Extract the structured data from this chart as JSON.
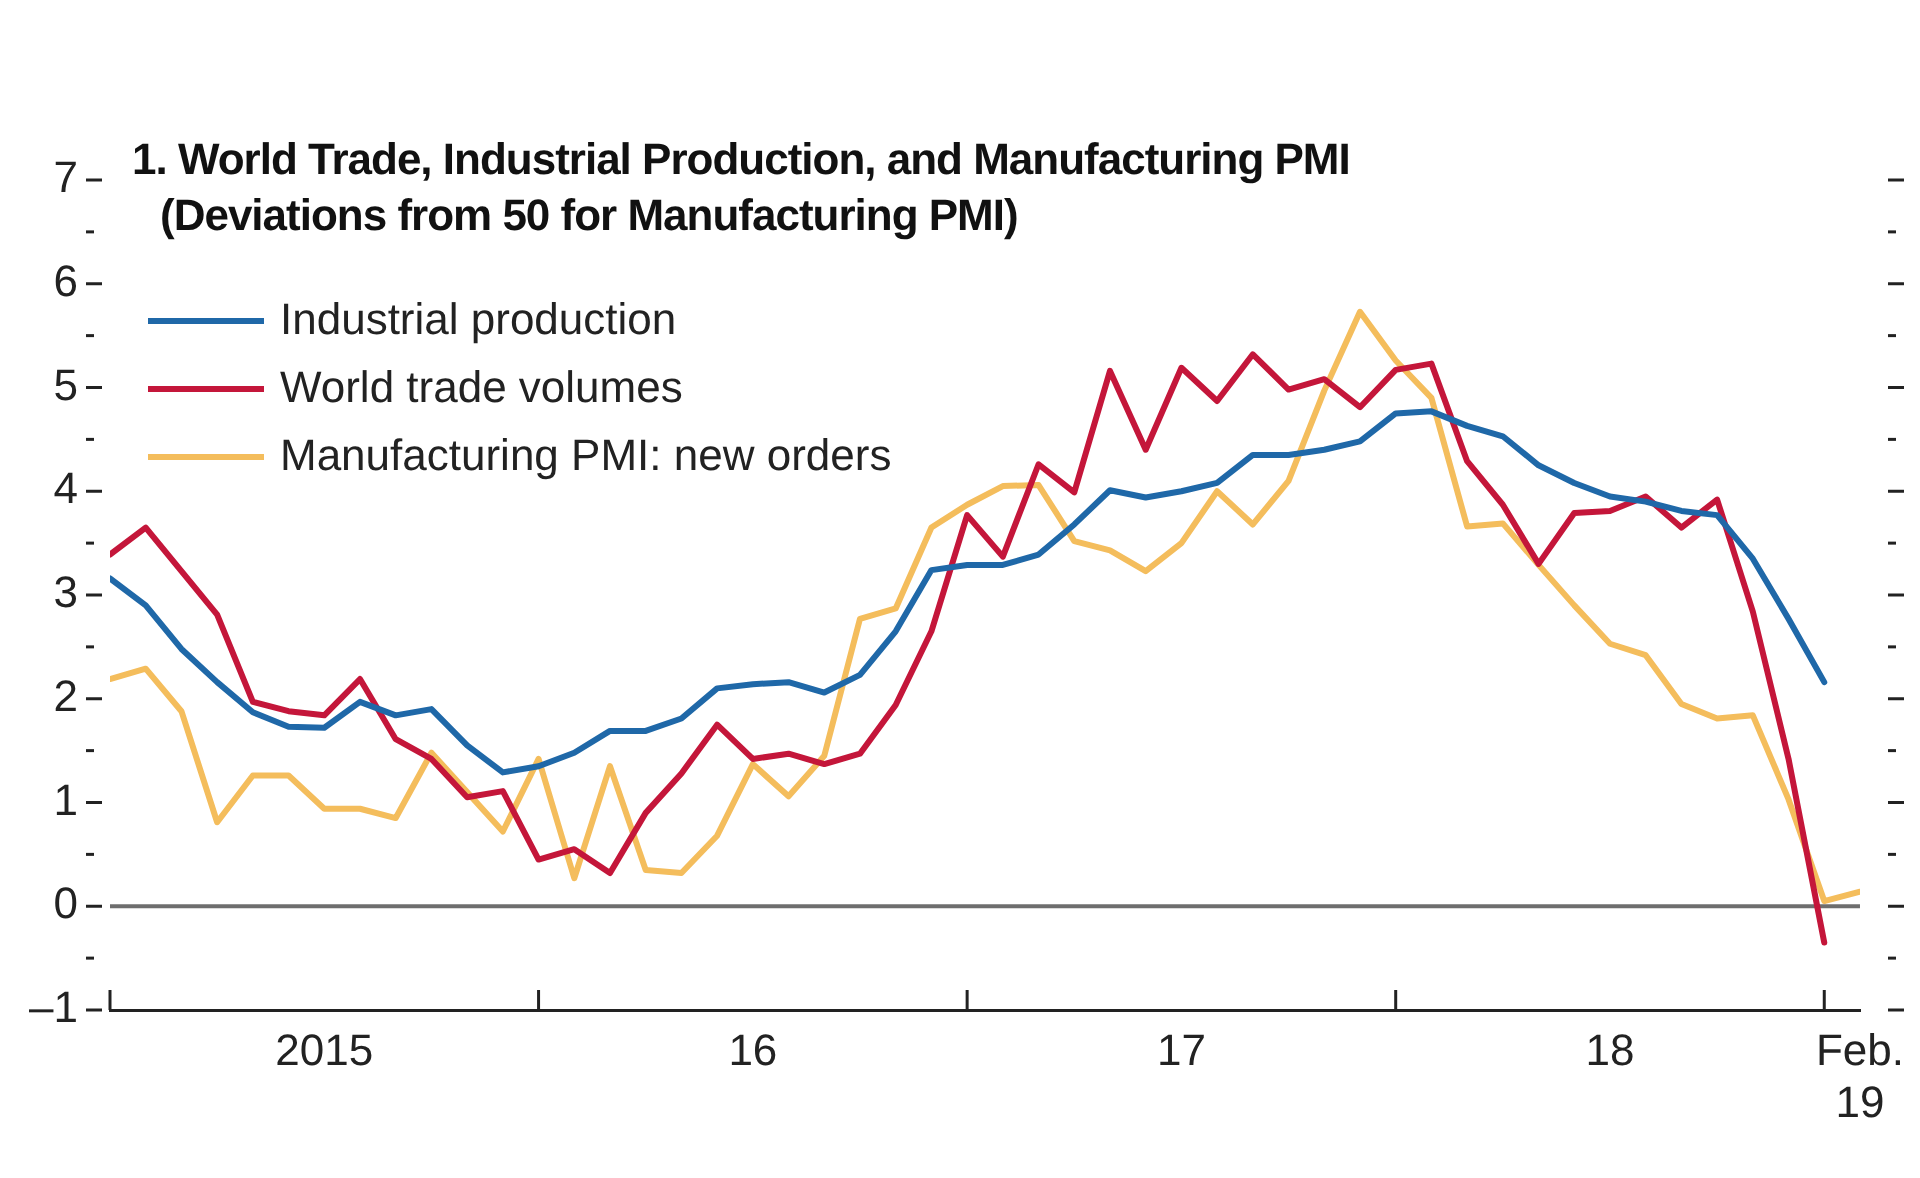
{
  "chart_data": {
    "type": "line",
    "title": "1. World Trade, Industrial Production, and Manufacturing PMI",
    "subtitle": "(Deviations from 50 for Manufacturing PMI)",
    "x": [
      "2015-01",
      "2015-02",
      "2015-03",
      "2015-04",
      "2015-05",
      "2015-06",
      "2015-07",
      "2015-08",
      "2015-09",
      "2015-10",
      "2015-11",
      "2015-12",
      "2016-01",
      "2016-02",
      "2016-03",
      "2016-04",
      "2016-05",
      "2016-06",
      "2016-07",
      "2016-08",
      "2016-09",
      "2016-10",
      "2016-11",
      "2016-12",
      "2017-01",
      "2017-02",
      "2017-03",
      "2017-04",
      "2017-05",
      "2017-06",
      "2017-07",
      "2017-08",
      "2017-09",
      "2017-10",
      "2017-11",
      "2017-12",
      "2018-01",
      "2018-02",
      "2018-03",
      "2018-04",
      "2018-05",
      "2018-06",
      "2018-07",
      "2018-08",
      "2018-09",
      "2018-10",
      "2018-11",
      "2018-12",
      "2019-01",
      "2019-02"
    ],
    "series": [
      {
        "name": "Industrial production",
        "color": "#1f68a8",
        "values": [
          3.16,
          2.9,
          2.48,
          2.16,
          1.87,
          1.73,
          1.72,
          1.97,
          1.84,
          1.9,
          1.55,
          1.29,
          1.35,
          1.48,
          1.69,
          1.69,
          1.81,
          2.1,
          2.14,
          2.16,
          2.06,
          2.23,
          2.65,
          3.24,
          3.29,
          3.29,
          3.39,
          3.68,
          4.01,
          3.94,
          4.0,
          4.08,
          4.35,
          4.35,
          4.4,
          4.48,
          4.75,
          4.77,
          4.63,
          4.53,
          4.25,
          4.08,
          3.95,
          3.9,
          3.81,
          3.77,
          3.35,
          2.77,
          2.16,
          null
        ]
      },
      {
        "name": "World trade volumes",
        "color": "#c4163a",
        "values": [
          3.39,
          3.65,
          3.23,
          2.81,
          1.97,
          1.88,
          1.84,
          2.19,
          1.61,
          1.42,
          1.05,
          1.11,
          0.45,
          0.55,
          0.32,
          0.9,
          1.28,
          1.75,
          1.42,
          1.47,
          1.37,
          1.47,
          1.94,
          2.65,
          3.77,
          3.37,
          4.26,
          3.99,
          5.16,
          4.4,
          5.19,
          4.87,
          5.32,
          4.98,
          5.08,
          4.81,
          5.17,
          5.23,
          4.29,
          3.87,
          3.3,
          3.79,
          3.81,
          3.95,
          3.65,
          3.92,
          2.84,
          1.42,
          -0.35,
          null
        ]
      },
      {
        "name": "Manufacturing PMI: new orders",
        "color": "#f4bd5c",
        "values": [
          2.19,
          2.29,
          1.88,
          0.81,
          1.26,
          1.26,
          0.94,
          0.94,
          0.85,
          1.48,
          1.1,
          0.72,
          1.42,
          0.27,
          1.35,
          0.35,
          0.32,
          0.68,
          1.37,
          1.06,
          1.45,
          2.77,
          2.87,
          3.65,
          3.87,
          4.05,
          4.06,
          3.52,
          3.43,
          3.23,
          3.5,
          4.0,
          3.68,
          4.1,
          4.97,
          5.73,
          5.26,
          4.9,
          3.66,
          3.69,
          3.29,
          2.9,
          2.53,
          2.42,
          1.95,
          1.81,
          1.84,
          1.03,
          0.05,
          0.14
        ]
      }
    ],
    "xlim": [
      "2015-01",
      "2019-02"
    ],
    "xticks": [
      {
        "value": "2015-01",
        "label": null
      },
      {
        "value": "2015-07",
        "label": "2015"
      },
      {
        "value": "2016-01",
        "label": null
      },
      {
        "value": "2016-07",
        "label": "16"
      },
      {
        "value": "2017-01",
        "label": null
      },
      {
        "value": "2017-07",
        "label": "17"
      },
      {
        "value": "2018-01",
        "label": null
      },
      {
        "value": "2018-07",
        "label": "18"
      },
      {
        "value": "2019-01",
        "label": null
      },
      {
        "value": "2019-02",
        "label": "Feb. 19"
      }
    ],
    "ylim": [
      -1,
      7
    ],
    "yticks": [
      {
        "value": -1,
        "label": "–1"
      },
      {
        "value": -0.5,
        "label": null
      },
      0,
      {
        "value": 0.5,
        "label": null
      },
      1,
      {
        "value": 1.5,
        "label": null
      },
      2,
      {
        "value": 2.5,
        "label": null
      },
      3,
      {
        "value": 3.5,
        "label": null
      },
      4,
      {
        "value": 4.5,
        "label": null
      },
      5,
      {
        "value": 5.5,
        "label": null
      },
      6,
      {
        "value": 6.5,
        "label": null
      },
      7
    ],
    "ref_lines": [
      {
        "axis": "y",
        "value": 0,
        "color": "#6e6e6e"
      }
    ],
    "grid": false,
    "legend": "top left",
    "line_style": "solid"
  }
}
